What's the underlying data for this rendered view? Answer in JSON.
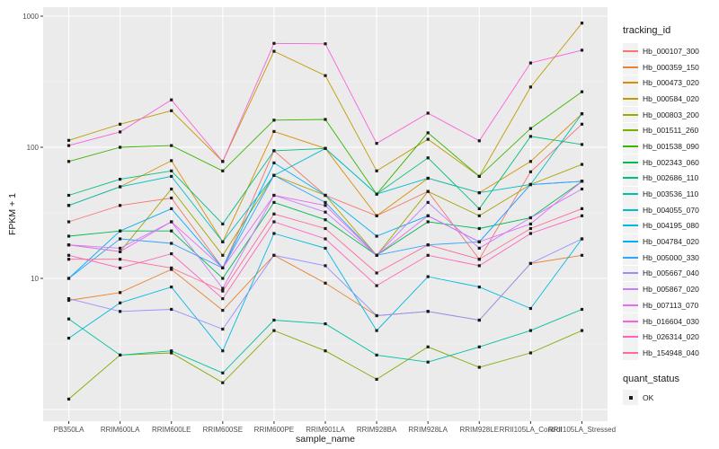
{
  "figure": {
    "bg": "#FFFFFF",
    "panel_bg": "#EBEBEB",
    "grid_major": "#FFFFFF",
    "grid_minor": "#F5F5F5",
    "axis_text_color": "#4D4D4D",
    "point_color": "#1A1A1A",
    "legend_key_bg": "#F2F2F2"
  },
  "chart_data": {
    "type": "line",
    "title": "",
    "xlabel": "sample_name",
    "ylabel": "FPKM + 1",
    "y_scale": "log10",
    "y_ticks": [
      10,
      100,
      1000
    ],
    "y_gridlines": [
      1,
      10,
      100,
      1000
    ],
    "y_minor_gridlines": [
      3.16,
      31.6,
      316
    ],
    "ylim": [
      0.8,
      1170
    ],
    "legend_title": "tracking_id",
    "legend2_title": "quant_status",
    "legend2_items": [
      "OK"
    ],
    "categories": [
      "PB350LA",
      "RRIM600LA",
      "RRIM600LE",
      "RRIM600SE",
      "RRIM600PE",
      "RRIM901LA",
      "RRIM928BA",
      "RRIM928LA",
      "RRIM928LE",
      "RRII105LA_Control",
      "RRII105LA_Stressed"
    ],
    "series": [
      {
        "name": "Hb_000107_300",
        "color": "#F8766D",
        "values": [
          27,
          36,
          41,
          12,
          94,
          43,
          30,
          46,
          14,
          65,
          150
        ]
      },
      {
        "name": "Hb_000359_150",
        "color": "#EA8331",
        "values": [
          6.8,
          7.8,
          11.7,
          5.7,
          15,
          9.2,
          5.2,
          5.6,
          4.8,
          13,
          15
        ]
      },
      {
        "name": "Hb_000473_020",
        "color": "#D89000",
        "values": [
          36,
          50,
          79,
          19,
          132,
          98,
          30,
          58,
          45,
          78,
          180
        ]
      },
      {
        "name": "Hb_000584_020",
        "color": "#C09B00",
        "values": [
          113,
          150,
          190,
          78,
          540,
          352,
          66,
          115,
          60,
          288,
          885
        ]
      },
      {
        "name": "Hb_000803_200",
        "color": "#A3A500",
        "values": [
          18,
          16,
          48,
          15,
          61,
          43,
          15,
          46,
          30,
          52,
          74
        ]
      },
      {
        "name": "Hb_001511_260",
        "color": "#7CAE00",
        "values": [
          1.2,
          2.6,
          2.7,
          1.6,
          4.0,
          2.8,
          1.7,
          3.0,
          2.1,
          2.7,
          4.0
        ]
      },
      {
        "name": "Hb_001538_090",
        "color": "#39B600",
        "values": [
          78,
          100,
          103,
          66,
          161,
          163,
          44,
          129,
          60,
          139,
          265
        ]
      },
      {
        "name": "Hb_002343_060",
        "color": "#00BB4E",
        "values": [
          21,
          23,
          23,
          10,
          38,
          28,
          15,
          27,
          24,
          29,
          55
        ]
      },
      {
        "name": "Hb_002686_110",
        "color": "#00BF7D",
        "values": [
          43,
          57,
          66,
          26,
          94,
          98,
          44,
          83,
          34,
          121,
          105
        ]
      },
      {
        "name": "Hb_003536_110",
        "color": "#00C1A3",
        "values": [
          4.9,
          2.6,
          2.8,
          1.9,
          4.8,
          4.5,
          2.6,
          2.3,
          3.0,
          4.0,
          5.8
        ]
      },
      {
        "name": "Hb_004055_070",
        "color": "#00BFC4",
        "values": [
          36,
          50,
          60,
          19,
          61,
          98,
          44,
          58,
          45,
          52,
          180
        ]
      },
      {
        "name": "Hb_004195_080",
        "color": "#00BAE0",
        "values": [
          3.5,
          6.5,
          8.6,
          2.8,
          22,
          17,
          4.0,
          10.3,
          8.6,
          5.9,
          20
        ]
      },
      {
        "name": "Hb_004784_020",
        "color": "#00B0F6",
        "values": [
          10,
          23,
          34,
          12,
          76,
          43,
          21,
          30,
          19,
          52,
          55
        ]
      },
      {
        "name": "Hb_005000_330",
        "color": "#35A2FF",
        "values": [
          10,
          20,
          18.5,
          12,
          61,
          38,
          15,
          18,
          19,
          52,
          55
        ]
      },
      {
        "name": "Hb_005667_040",
        "color": "#9590FF",
        "values": [
          7,
          5.6,
          5.8,
          4.1,
          15,
          12.5,
          5.2,
          5.6,
          4.8,
          13,
          20
        ]
      },
      {
        "name": "Hb_005867_020",
        "color": "#C77CFF",
        "values": [
          18,
          17,
          27,
          8.4,
          43,
          32,
          15,
          38,
          17,
          29,
          48
        ]
      },
      {
        "name": "Hb_007113_070",
        "color": "#E76BF3",
        "values": [
          18,
          16,
          27,
          12,
          43,
          36,
          15,
          30,
          19,
          26,
          55
        ]
      },
      {
        "name": "Hb_016604_030",
        "color": "#FA62DB",
        "values": [
          103,
          131,
          230,
          78,
          620,
          615,
          107,
          182,
          112,
          440,
          550
        ]
      },
      {
        "name": "Hb_026314_020",
        "color": "#FF62BC",
        "values": [
          15,
          12,
          15.4,
          7,
          27,
          20,
          8.8,
          15,
          12.5,
          22,
          30
        ]
      },
      {
        "name": "Hb_154948_040",
        "color": "#FF6A98",
        "values": [
          14,
          14,
          12,
          8,
          31,
          24,
          11,
          18,
          14,
          24,
          34
        ]
      }
    ]
  }
}
